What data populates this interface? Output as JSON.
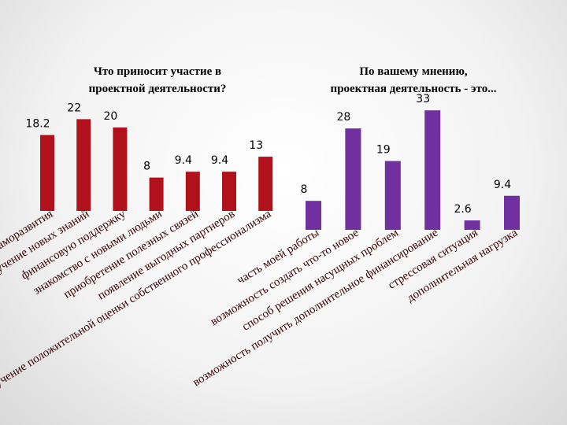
{
  "chart_data": [
    {
      "type": "bar",
      "title": [
        "Что приносит участие в",
        "проектной деятельности?"
      ],
      "categories": [
        "возможность саморазвития",
        "получение новых знаний",
        "финансовую поддержку",
        "знакомство с новыми людьми",
        "приобретение полезных связей",
        "появление выгодных партнеров",
        "получение положительной оценки собственного профессионализма"
      ],
      "values": [
        18.2,
        22,
        20,
        8,
        9.4,
        9.4,
        13
      ],
      "color": "#b0111a"
    },
    {
      "type": "bar",
      "title": [
        "По вашему мнению,",
        "проектная деятельность - это..."
      ],
      "categories": [
        "часть моей работы",
        "возможность создать что-то новое",
        "способ решения насущных проблем",
        "возможность получить дополнительное финансирование",
        "стрессовая ситуация",
        "дополнительная нагрузка"
      ],
      "values": [
        8,
        28,
        19,
        33,
        2.6,
        9.4
      ],
      "color": "#7030a0"
    }
  ]
}
